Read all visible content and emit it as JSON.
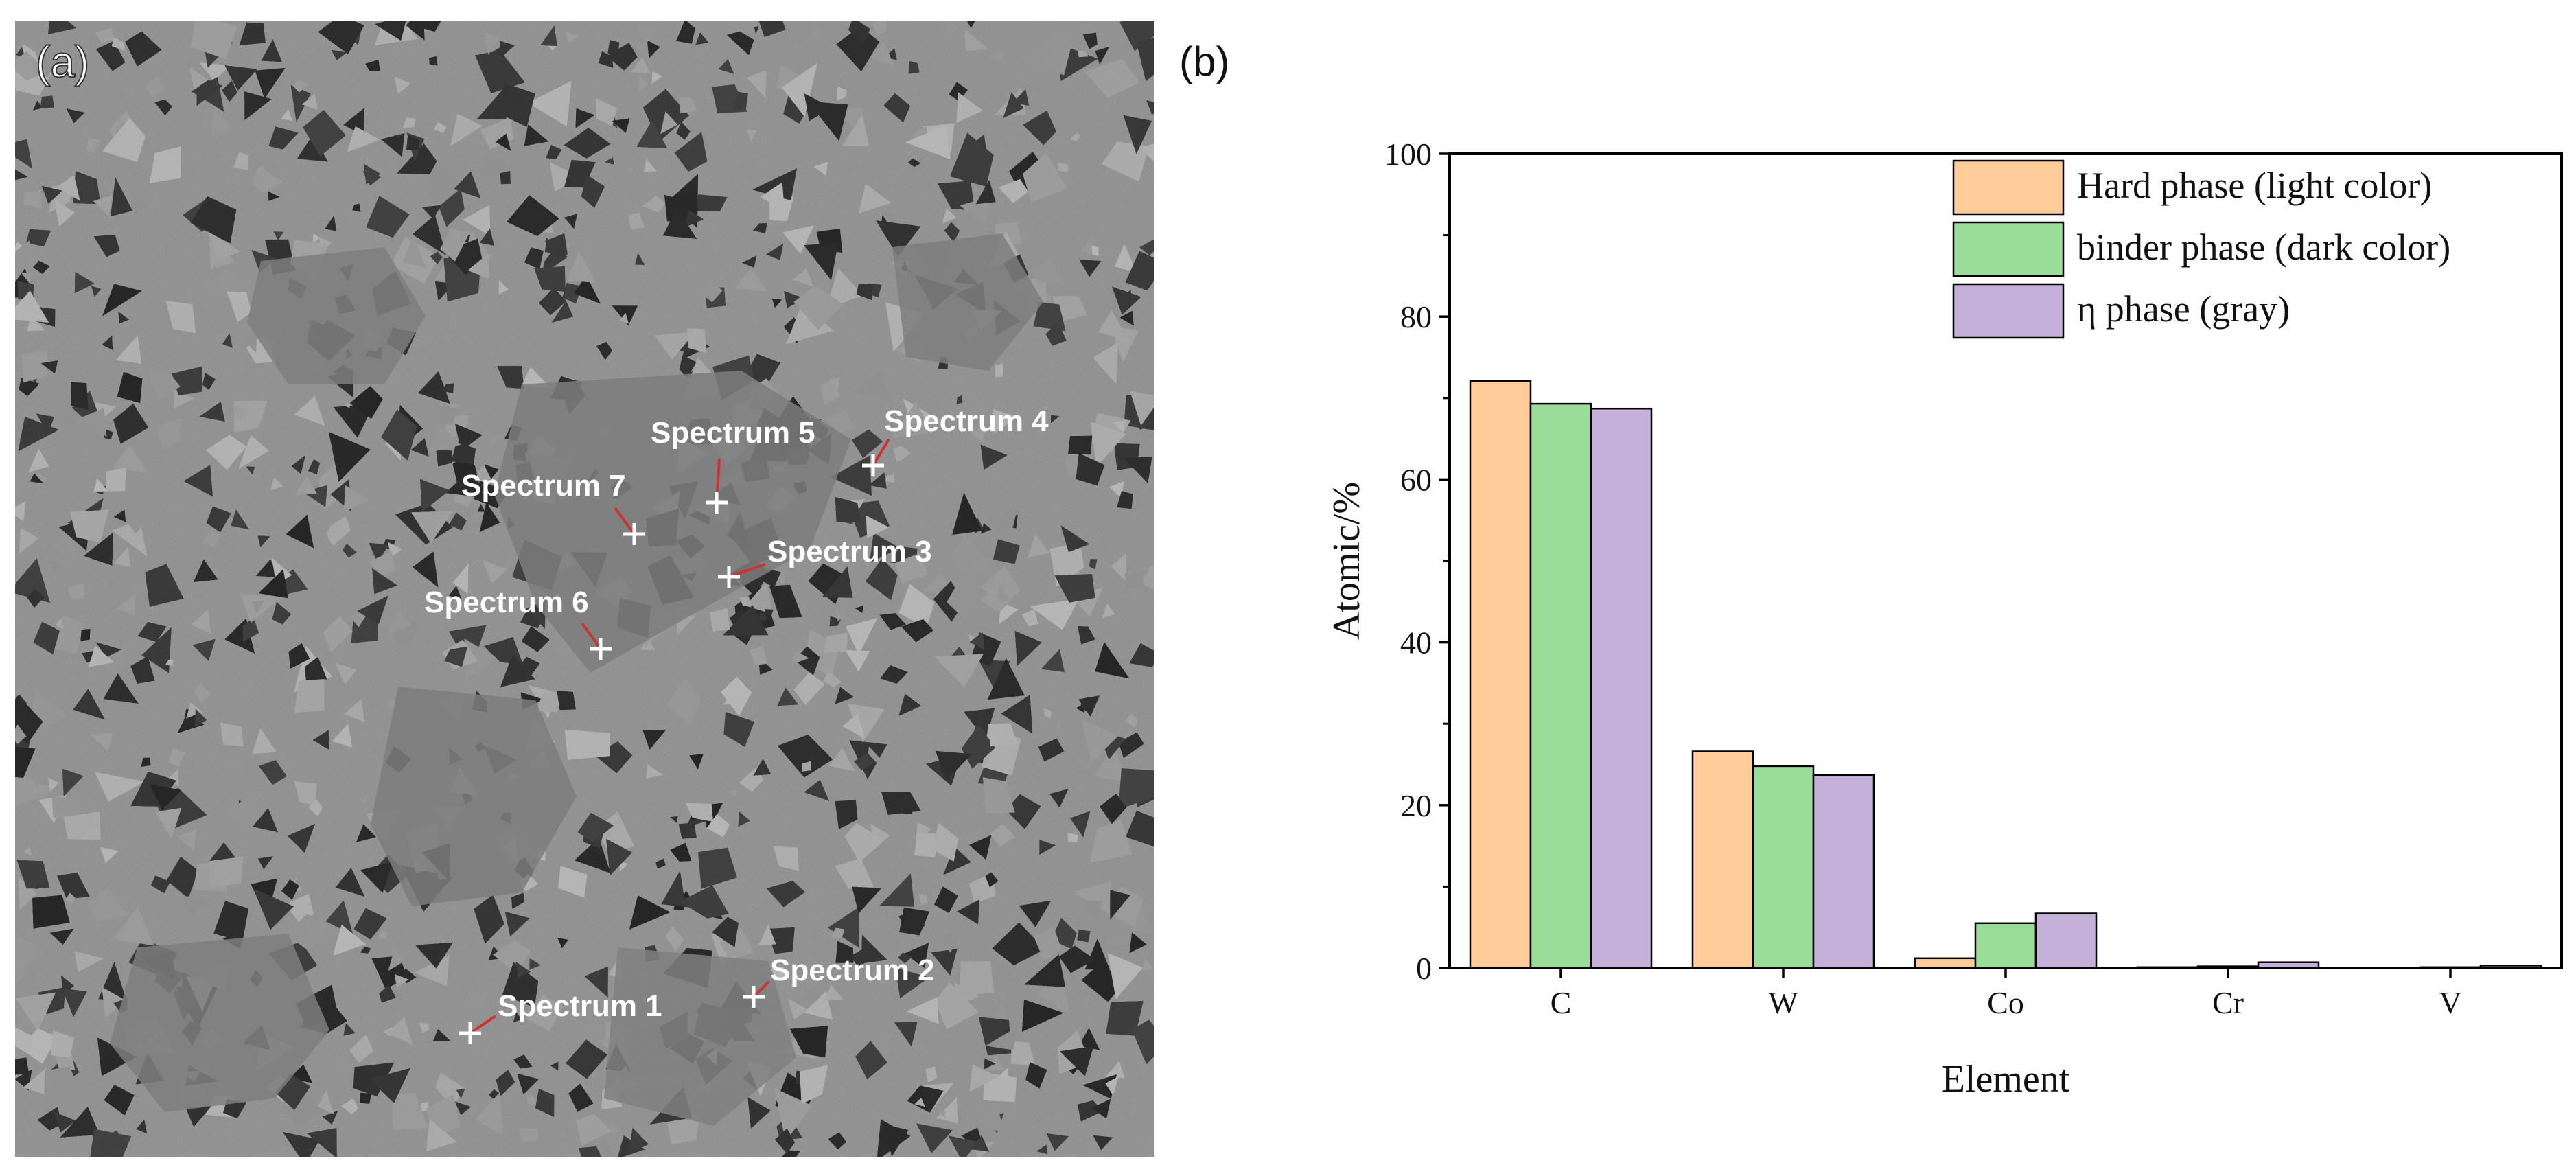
{
  "panel_a": {
    "label": "(a)",
    "spectra": [
      {
        "label": "Spectrum 1"
      },
      {
        "label": "Spectrum 2"
      },
      {
        "label": "Spectrum 3"
      },
      {
        "label": "Spectrum 4"
      },
      {
        "label": "Spectrum 5"
      },
      {
        "label": "Spectrum 6"
      },
      {
        "label": "Spectrum 7"
      }
    ]
  },
  "panel_b": {
    "label": "(b)"
  },
  "chart_data": {
    "type": "bar",
    "categories": [
      "C",
      "W",
      "Co",
      "Cr",
      "V"
    ],
    "series": [
      {
        "name": "Hard phase (light color)",
        "color": "#ffcc99",
        "values": [
          72.1,
          26.6,
          1.2,
          0.1,
          0.0
        ]
      },
      {
        "name": "binder phase (dark color)",
        "color": "#99dd99",
        "values": [
          69.3,
          24.8,
          5.5,
          0.2,
          0.1
        ]
      },
      {
        "name": "η phase (gray)",
        "color": "#c4b0d8",
        "values": [
          68.7,
          23.7,
          6.7,
          0.7,
          0.3
        ]
      }
    ],
    "xlabel": "Element",
    "ylabel": "Atomic/%",
    "ylim": [
      0,
      100
    ],
    "yticks": [
      0,
      20,
      40,
      60,
      80,
      100
    ],
    "legend_position": "top-right",
    "grid": false
  }
}
